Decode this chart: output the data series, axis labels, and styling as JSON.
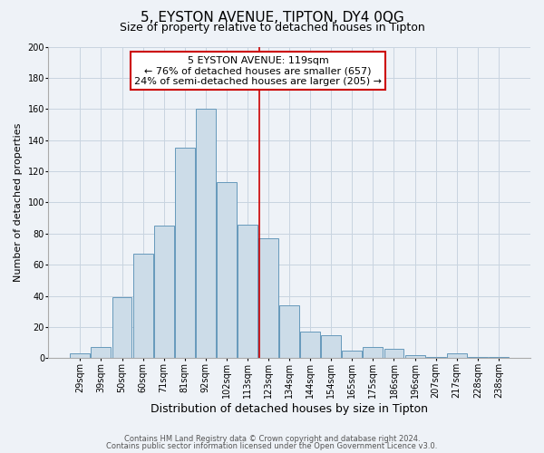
{
  "title": "5, EYSTON AVENUE, TIPTON, DY4 0QG",
  "subtitle": "Size of property relative to detached houses in Tipton",
  "xlabel": "Distribution of detached houses by size in Tipton",
  "ylabel": "Number of detached properties",
  "bar_labels": [
    "29sqm",
    "39sqm",
    "50sqm",
    "60sqm",
    "71sqm",
    "81sqm",
    "92sqm",
    "102sqm",
    "113sqm",
    "123sqm",
    "134sqm",
    "144sqm",
    "154sqm",
    "165sqm",
    "175sqm",
    "186sqm",
    "196sqm",
    "207sqm",
    "217sqm",
    "228sqm",
    "238sqm"
  ],
  "bar_heights": [
    3,
    7,
    39,
    67,
    85,
    135,
    160,
    113,
    86,
    77,
    34,
    17,
    15,
    5,
    7,
    6,
    2,
    1,
    3,
    1,
    1
  ],
  "bar_color": "#ccdce8",
  "bar_edge_color": "#6699bb",
  "vline_color": "#cc0000",
  "vline_pos": 8.55,
  "annotation_title": "5 EYSTON AVENUE: 119sqm",
  "annotation_line1": "← 76% of detached houses are smaller (657)",
  "annotation_line2": "24% of semi-detached houses are larger (205) →",
  "annotation_box_color": "#cc0000",
  "annotation_bg": "#ffffff",
  "footer1": "Contains HM Land Registry data © Crown copyright and database right 2024.",
  "footer2": "Contains public sector information licensed under the Open Government Licence v3.0.",
  "ylim": [
    0,
    200
  ],
  "yticks": [
    0,
    20,
    40,
    60,
    80,
    100,
    120,
    140,
    160,
    180,
    200
  ],
  "grid_color": "#c8d4e0",
  "bg_color": "#eef2f7",
  "title_fontsize": 11,
  "subtitle_fontsize": 9,
  "ylabel_fontsize": 8,
  "xlabel_fontsize": 9,
  "tick_fontsize": 7,
  "ytick_fontsize": 7,
  "annotation_fontsize": 8,
  "footer_fontsize": 6
}
